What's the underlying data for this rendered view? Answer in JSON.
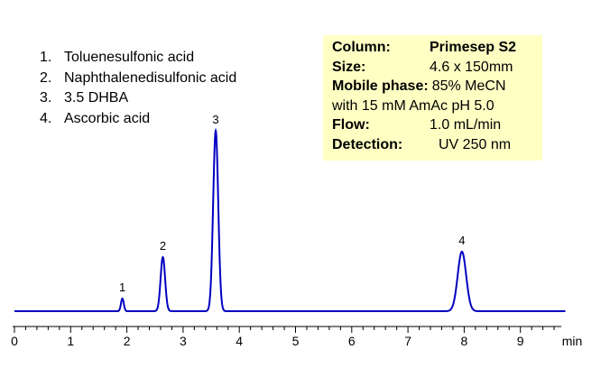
{
  "chart_data": {
    "type": "line",
    "xlabel": "min",
    "ylabel": "",
    "title": "",
    "xlim": [
      0,
      9.8
    ],
    "xticks": [
      0,
      1,
      2,
      3,
      4,
      5,
      6,
      7,
      8,
      9
    ],
    "grid": false,
    "line_color": "#0000c0",
    "peaks": [
      {
        "label": "1",
        "rt": 1.92,
        "height": 0.07,
        "width": 0.025
      },
      {
        "label": "2",
        "rt": 2.64,
        "height": 0.3,
        "width": 0.04
      },
      {
        "label": "3",
        "rt": 3.58,
        "height": 1.0,
        "width": 0.045
      },
      {
        "label": "4",
        "rt": 7.96,
        "height": 0.33,
        "width": 0.075
      }
    ],
    "legend": [
      {
        "num": "1.",
        "name": "Toluenesulfonic acid"
      },
      {
        "num": "2.",
        "name": "Naphthalenedisulfonic acid"
      },
      {
        "num": "3.",
        "name": "3.5 DHBA"
      },
      {
        "num": "4.",
        "name": "Ascorbic acid"
      }
    ]
  },
  "conditions": {
    "column_label": "Column:",
    "column_value": "Primesep S2",
    "size_label": "Size:",
    "size_value": "4.6 x 150mm",
    "mobile_label": "Mobile phase:",
    "mobile_value": "85% MeCN",
    "mobile_line2": "with 15 mM  AmAc pH 5.0",
    "flow_label": "Flow:",
    "flow_value": "1.0 mL/min",
    "detection_label": "Detection:",
    "detection_value": "UV 250 nm"
  },
  "colors": {
    "trace": "#0000c0",
    "box_bg": "#ffffc4"
  }
}
